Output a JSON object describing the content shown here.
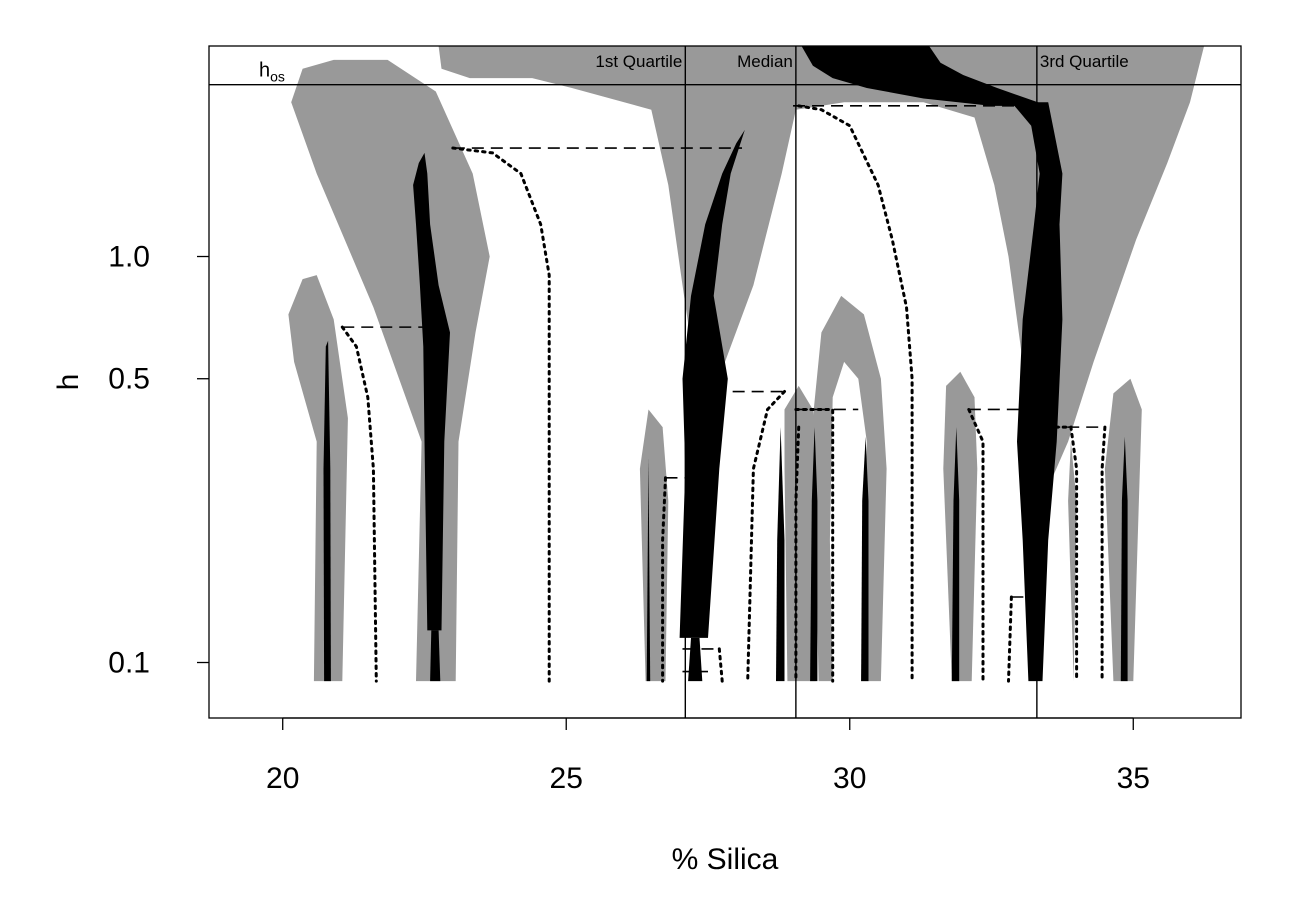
{
  "chart_data": {
    "type": "area",
    "title": "",
    "xlabel": "% Silica",
    "ylabel": "h",
    "xlim": [
      18.7,
      36.9
    ],
    "ylim": [
      0.073,
      3.3
    ],
    "ylog": true,
    "grid": false,
    "xticks": [
      {
        "value": 20,
        "label": "20"
      },
      {
        "value": 25,
        "label": "25"
      },
      {
        "value": 30,
        "label": "30"
      },
      {
        "value": 35,
        "label": "35"
      }
    ],
    "yticks": [
      {
        "value": 0.1,
        "label": "0.1"
      },
      {
        "value": 0.5,
        "label": "0.5"
      },
      {
        "value": 1.0,
        "label": "1.0"
      }
    ],
    "reference_lines": {
      "vertical": [
        {
          "x": 27.1,
          "label": "1st Quartile"
        },
        {
          "x": 29.05,
          "label": "Median"
        },
        {
          "x": 33.3,
          "label": "3rd Quartile"
        }
      ],
      "horizontal": [
        {
          "y": 2.65,
          "label_main": "h",
          "label_sub": "os"
        }
      ]
    },
    "colors": {
      "significance_band": "#999999",
      "mode_trace": "#000000",
      "lines": "#000000"
    },
    "gray_regions": [
      {
        "name": "left-small-band",
        "points": [
          [
            20.55,
            0.09
          ],
          [
            20.6,
            0.35
          ],
          [
            20.2,
            0.55
          ],
          [
            20.1,
            0.72
          ],
          [
            20.35,
            0.88
          ],
          [
            20.6,
            0.9
          ],
          [
            20.9,
            0.7
          ],
          [
            21.15,
            0.4
          ],
          [
            21.05,
            0.09
          ]
        ]
      },
      {
        "name": "left-large-band",
        "points": [
          [
            22.35,
            0.09
          ],
          [
            22.45,
            0.35
          ],
          [
            21.6,
            0.75
          ],
          [
            20.6,
            1.6
          ],
          [
            20.15,
            2.4
          ],
          [
            20.35,
            2.9
          ],
          [
            20.9,
            3.05
          ],
          [
            21.85,
            3.05
          ],
          [
            22.7,
            2.55
          ],
          [
            23.35,
            1.6
          ],
          [
            23.65,
            1.0
          ],
          [
            23.4,
            0.65
          ],
          [
            23.1,
            0.35
          ],
          [
            23.05,
            0.09
          ]
        ]
      },
      {
        "name": "big-upper-band",
        "points": [
          [
            22.75,
            3.3
          ],
          [
            22.8,
            2.9
          ],
          [
            23.3,
            2.75
          ],
          [
            24.4,
            2.75
          ],
          [
            25.1,
            2.6
          ],
          [
            26.5,
            2.3
          ],
          [
            26.8,
            1.5
          ],
          [
            27.05,
            0.85
          ],
          [
            27.25,
            0.55
          ],
          [
            27.45,
            0.5
          ],
          [
            27.6,
            0.5
          ],
          [
            27.8,
            0.55
          ],
          [
            28.3,
            0.85
          ],
          [
            28.8,
            1.6
          ],
          [
            29.05,
            2.3
          ],
          [
            29.9,
            2.4
          ],
          [
            31.3,
            2.4
          ],
          [
            32.2,
            2.2
          ],
          [
            32.55,
            1.5
          ],
          [
            32.8,
            1.0
          ],
          [
            33.05,
            0.55
          ],
          [
            33.2,
            0.35
          ],
          [
            33.3,
            0.28
          ],
          [
            33.55,
            0.28
          ],
          [
            33.85,
            0.35
          ],
          [
            34.3,
            0.55
          ],
          [
            35.05,
            1.1
          ],
          [
            35.6,
            1.7
          ],
          [
            36.0,
            2.4
          ],
          [
            36.25,
            3.3
          ]
        ]
      },
      {
        "name": "middle-small-band-1",
        "points": [
          [
            26.4,
            0.09
          ],
          [
            26.3,
            0.3
          ],
          [
            26.45,
            0.42
          ],
          [
            26.7,
            0.38
          ],
          [
            26.8,
            0.25
          ],
          [
            26.75,
            0.09
          ]
        ]
      },
      {
        "name": "middle-small-band-2",
        "points": [
          [
            28.9,
            0.09
          ],
          [
            28.85,
            0.3
          ],
          [
            28.85,
            0.42
          ],
          [
            29.1,
            0.48
          ],
          [
            29.35,
            0.42
          ],
          [
            29.45,
            0.3
          ],
          [
            29.4,
            0.09
          ]
        ]
      },
      {
        "name": "center-arch-band",
        "points": [
          [
            29.45,
            0.09
          ],
          [
            29.35,
            0.4
          ],
          [
            29.5,
            0.65
          ],
          [
            29.85,
            0.8
          ],
          [
            30.25,
            0.72
          ],
          [
            30.55,
            0.5
          ],
          [
            30.65,
            0.3
          ],
          [
            30.55,
            0.09
          ],
          [
            30.2,
            0.09
          ],
          [
            30.3,
            0.35
          ],
          [
            30.15,
            0.5
          ],
          [
            29.9,
            0.55
          ],
          [
            29.7,
            0.45
          ],
          [
            29.65,
            0.2
          ],
          [
            29.7,
            0.09
          ]
        ]
      },
      {
        "name": "right-small-band-1",
        "points": [
          [
            31.8,
            0.09
          ],
          [
            31.65,
            0.3
          ],
          [
            31.7,
            0.48
          ],
          [
            31.95,
            0.52
          ],
          [
            32.2,
            0.45
          ],
          [
            32.25,
            0.3
          ],
          [
            32.15,
            0.09
          ]
        ]
      },
      {
        "name": "right-small-band-2",
        "points": [
          [
            33.95,
            0.09
          ],
          [
            33.85,
            0.25
          ],
          [
            33.9,
            0.35
          ],
          [
            34.0,
            0.25
          ],
          [
            33.95,
            0.09
          ]
        ]
      },
      {
        "name": "far-right-band",
        "points": [
          [
            34.65,
            0.09
          ],
          [
            34.5,
            0.3
          ],
          [
            34.65,
            0.46
          ],
          [
            34.95,
            0.5
          ],
          [
            35.15,
            0.42
          ],
          [
            35.1,
            0.25
          ],
          [
            35.0,
            0.09
          ]
        ]
      }
    ],
    "black_regions": [
      {
        "name": "mode-trace-1",
        "points": [
          [
            20.73,
            0.09
          ],
          [
            20.72,
            0.3
          ],
          [
            20.76,
            0.6
          ],
          [
            20.8,
            0.62
          ],
          [
            20.84,
            0.3
          ],
          [
            20.85,
            0.09
          ]
        ]
      },
      {
        "name": "mode-trace-2",
        "points": [
          [
            22.55,
            0.12
          ],
          [
            22.5,
            0.35
          ],
          [
            22.48,
            0.6
          ],
          [
            22.42,
            0.85
          ],
          [
            22.35,
            1.2
          ],
          [
            22.3,
            1.5
          ],
          [
            22.4,
            1.7
          ],
          [
            22.5,
            1.8
          ],
          [
            22.55,
            1.6
          ],
          [
            22.6,
            1.2
          ],
          [
            22.75,
            0.85
          ],
          [
            22.95,
            0.65
          ],
          [
            22.85,
            0.35
          ],
          [
            22.8,
            0.12
          ]
        ]
      },
      {
        "name": "mode-trace-3",
        "points": [
          [
            22.6,
            0.09
          ],
          [
            22.62,
            0.12
          ],
          [
            22.75,
            0.12
          ],
          [
            22.78,
            0.09
          ]
        ]
      },
      {
        "name": "mode-trace-4",
        "points": [
          [
            27.0,
            0.115
          ],
          [
            27.1,
            0.3
          ],
          [
            27.05,
            0.5
          ],
          [
            27.2,
            0.8
          ],
          [
            27.45,
            1.2
          ],
          [
            27.75,
            1.6
          ],
          [
            28.0,
            1.9
          ],
          [
            28.15,
            2.05
          ],
          [
            27.9,
            1.6
          ],
          [
            27.75,
            1.2
          ],
          [
            27.6,
            0.8
          ],
          [
            27.85,
            0.5
          ],
          [
            27.7,
            0.3
          ],
          [
            27.5,
            0.115
          ]
        ]
      },
      {
        "name": "mode-trace-5",
        "points": [
          [
            27.15,
            0.09
          ],
          [
            27.2,
            0.115
          ],
          [
            27.35,
            0.115
          ],
          [
            27.4,
            0.09
          ]
        ]
      },
      {
        "name": "mode-trace-6",
        "points": [
          [
            26.42,
            0.09
          ],
          [
            26.45,
            0.32
          ],
          [
            26.48,
            0.09
          ]
        ]
      },
      {
        "name": "mode-trace-7",
        "points": [
          [
            28.7,
            0.09
          ],
          [
            28.72,
            0.2
          ],
          [
            28.78,
            0.38
          ],
          [
            28.85,
            0.2
          ],
          [
            28.85,
            0.09
          ]
        ]
      },
      {
        "name": "mode-trace-8",
        "points": [
          [
            29.3,
            0.09
          ],
          [
            29.33,
            0.25
          ],
          [
            29.38,
            0.38
          ],
          [
            29.43,
            0.25
          ],
          [
            29.43,
            0.09
          ]
        ]
      },
      {
        "name": "mode-trace-9",
        "points": [
          [
            30.2,
            0.09
          ],
          [
            30.22,
            0.25
          ],
          [
            30.28,
            0.36
          ],
          [
            30.33,
            0.25
          ],
          [
            30.33,
            0.09
          ]
        ]
      },
      {
        "name": "mode-trace-10",
        "points": [
          [
            31.8,
            0.09
          ],
          [
            31.83,
            0.25
          ],
          [
            31.88,
            0.38
          ],
          [
            31.93,
            0.25
          ],
          [
            31.93,
            0.09
          ]
        ]
      },
      {
        "name": "mode-trace-11",
        "points": [
          [
            33.15,
            0.09
          ],
          [
            33.05,
            0.2
          ],
          [
            32.95,
            0.35
          ],
          [
            33.05,
            0.7
          ],
          [
            33.25,
            1.2
          ],
          [
            33.35,
            1.6
          ],
          [
            33.2,
            2.1
          ],
          [
            32.85,
            2.4
          ],
          [
            33.5,
            2.4
          ],
          [
            33.75,
            1.6
          ],
          [
            33.7,
            1.2
          ],
          [
            33.75,
            0.7
          ],
          [
            33.65,
            0.35
          ],
          [
            33.5,
            0.2
          ],
          [
            33.4,
            0.09
          ]
        ]
      },
      {
        "name": "mode-trace-12",
        "points": [
          [
            34.78,
            0.09
          ],
          [
            34.8,
            0.25
          ],
          [
            34.85,
            0.36
          ],
          [
            34.9,
            0.25
          ],
          [
            34.9,
            0.09
          ]
        ]
      },
      {
        "name": "mode-trace-top",
        "points": [
          [
            29.15,
            3.3
          ],
          [
            29.35,
            2.95
          ],
          [
            29.7,
            2.75
          ],
          [
            30.3,
            2.6
          ],
          [
            31.3,
            2.45
          ],
          [
            32.5,
            2.35
          ],
          [
            32.9,
            2.35
          ],
          [
            33.5,
            2.35
          ],
          [
            32.6,
            2.6
          ],
          [
            32.0,
            2.8
          ],
          [
            31.6,
            3.0
          ],
          [
            31.4,
            3.3
          ]
        ]
      }
    ],
    "dashed_connectors": [
      {
        "y": 0.67,
        "x1": 21.05,
        "x2": 22.7
      },
      {
        "y": 1.85,
        "x1": 23.0,
        "x2": 28.1
      },
      {
        "y": 0.465,
        "x1": 27.6,
        "x2": 28.85
      },
      {
        "y": 0.42,
        "x1": 29.05,
        "x2": 30.15
      },
      {
        "y": 0.285,
        "x1": 26.75,
        "x2": 27.35
      },
      {
        "y": 2.35,
        "x1": 29.0,
        "x2": 33.1
      },
      {
        "y": 0.42,
        "x1": 32.1,
        "x2": 33.4
      },
      {
        "y": 0.38,
        "x1": 33.5,
        "x2": 34.5
      },
      {
        "y": 0.145,
        "x1": 32.85,
        "x2": 33.3
      },
      {
        "y": 0.108,
        "x1": 27.05,
        "x2": 27.7
      },
      {
        "y": 0.095,
        "x1": 27.05,
        "x2": 27.5
      }
    ],
    "dotted_curves": [
      {
        "points": [
          [
            21.05,
            0.67
          ],
          [
            21.3,
            0.6
          ],
          [
            21.5,
            0.45
          ],
          [
            21.6,
            0.3
          ],
          [
            21.65,
            0.09
          ]
        ]
      },
      {
        "points": [
          [
            23.0,
            1.85
          ],
          [
            23.7,
            1.8
          ],
          [
            24.2,
            1.6
          ],
          [
            24.55,
            1.2
          ],
          [
            24.7,
            0.9
          ],
          [
            24.7,
            0.09
          ]
        ]
      },
      {
        "points": [
          [
            26.75,
            0.285
          ],
          [
            26.7,
            0.2
          ],
          [
            26.7,
            0.09
          ]
        ]
      },
      {
        "points": [
          [
            27.7,
            0.108
          ],
          [
            27.75,
            0.09
          ]
        ]
      },
      {
        "points": [
          [
            28.85,
            0.465
          ],
          [
            28.55,
            0.42
          ],
          [
            28.3,
            0.3
          ],
          [
            28.2,
            0.09
          ]
        ]
      },
      {
        "points": [
          [
            29.05,
            0.42
          ],
          [
            29.7,
            0.42
          ],
          [
            29.7,
            0.09
          ]
        ]
      },
      {
        "points": [
          [
            29.1,
            0.38
          ],
          [
            29.05,
            0.25
          ],
          [
            29.05,
            0.09
          ]
        ]
      },
      {
        "points": [
          [
            29.1,
            2.35
          ],
          [
            29.5,
            2.3
          ],
          [
            30.0,
            2.1
          ],
          [
            30.5,
            1.5
          ],
          [
            30.75,
            1.1
          ],
          [
            31.0,
            0.75
          ],
          [
            31.1,
            0.5
          ],
          [
            31.1,
            0.09
          ]
        ]
      },
      {
        "points": [
          [
            32.1,
            0.42
          ],
          [
            32.35,
            0.35
          ],
          [
            32.35,
            0.09
          ]
        ]
      },
      {
        "points": [
          [
            32.85,
            0.145
          ],
          [
            32.8,
            0.09
          ]
        ]
      },
      {
        "points": [
          [
            33.5,
            0.38
          ],
          [
            33.9,
            0.38
          ],
          [
            34.0,
            0.3
          ],
          [
            34.0,
            0.09
          ]
        ]
      },
      {
        "points": [
          [
            34.5,
            0.38
          ],
          [
            34.45,
            0.3
          ],
          [
            34.45,
            0.09
          ]
        ]
      }
    ]
  }
}
